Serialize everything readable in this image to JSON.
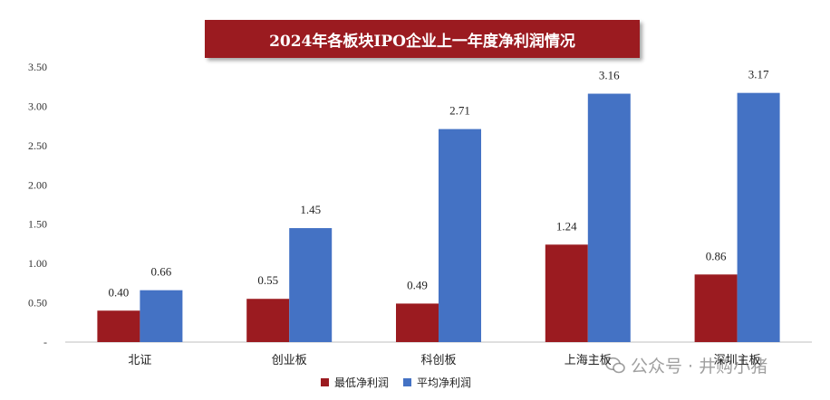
{
  "chart_data": {
    "type": "bar",
    "title": "2024年各板块IPO企业上一年度净利润情况",
    "categories": [
      "北证",
      "创业板",
      "科创板",
      "上海主板",
      "深圳主板"
    ],
    "series": [
      {
        "name": "最低净利润",
        "values": [
          0.4,
          0.55,
          0.49,
          1.24,
          0.86
        ],
        "color": "#9b1b20"
      },
      {
        "name": "平均净利润",
        "values": [
          0.66,
          1.45,
          2.71,
          3.16,
          3.17
        ],
        "color": "#4472c4"
      }
    ],
    "ylim": [
      0,
      3.5
    ],
    "yticks": [
      "-",
      "0.50",
      "1.00",
      "1.50",
      "2.00",
      "2.50",
      "3.00",
      "3.50"
    ],
    "xlabel": "",
    "ylabel": "",
    "grid": false,
    "legend_position": "bottom"
  },
  "watermark": {
    "text": "公众号 · 井购小猪",
    "icon": "wechat-icon"
  }
}
